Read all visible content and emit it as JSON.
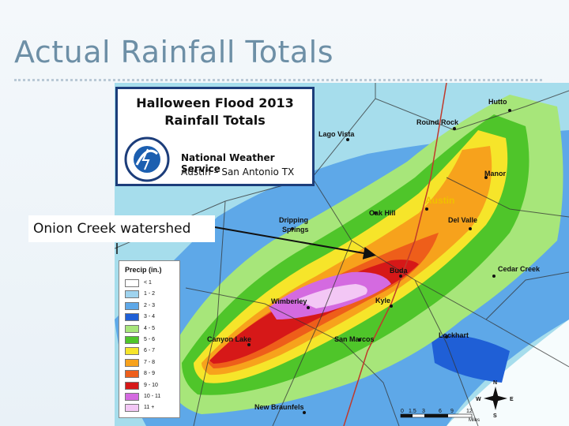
{
  "slide": {
    "title": "Actual Rainfall Totals"
  },
  "map_title": {
    "line1": "Halloween Flood 2013",
    "line2": "Rainfall Totals",
    "organization": "National Weather Service",
    "office": "Austin – San Antonio TX"
  },
  "callout": {
    "label": "Onion Creek watershed"
  },
  "legend": {
    "title": "Precip (in.)",
    "items": [
      {
        "label": "< 1",
        "color": "#ffffff"
      },
      {
        "label": "1 - 2",
        "color": "#9fd3ee"
      },
      {
        "label": "2 - 3",
        "color": "#5ea8e8"
      },
      {
        "label": "3 - 4",
        "color": "#1f5fd6"
      },
      {
        "label": "4 - 5",
        "color": "#a7e67a"
      },
      {
        "label": "5 - 6",
        "color": "#4fc52a"
      },
      {
        "label": "6 - 7",
        "color": "#f6e52a"
      },
      {
        "label": "7 - 8",
        "color": "#f7a21c"
      },
      {
        "label": "8 - 9",
        "color": "#ee5e1a"
      },
      {
        "label": "9 - 10",
        "color": "#d61818"
      },
      {
        "label": "10 - 11",
        "color": "#d46ae0"
      },
      {
        "label": "11 +",
        "color": "#f3c7f5"
      }
    ]
  },
  "places": {
    "hutto": "Hutto",
    "round_rock": "Round Rock",
    "lago_vista": "Lago Vista",
    "manor": "Manor",
    "austin": "Austin",
    "dripping_springs_1": "Dripping",
    "dripping_springs_2": "Springs",
    "oak_hill": "Oak Hill",
    "del_valle": "Del Valle",
    "buda": "Buda",
    "cedar_creek": "Cedar Creek",
    "wimberley": "Wimberley",
    "kyle": "Kyle",
    "canyon_lake": "Canyon Lake",
    "san_marcos": "San Marcos",
    "lockhart": "Lockhart",
    "new_braunfels": "New Braunfels"
  },
  "scale_bar": {
    "ticks": [
      "0",
      "1.5",
      "3",
      "6",
      "9",
      "12"
    ],
    "unit": "Miles"
  },
  "compass": {
    "n": "N",
    "s": "S",
    "e": "E",
    "w": "W"
  }
}
